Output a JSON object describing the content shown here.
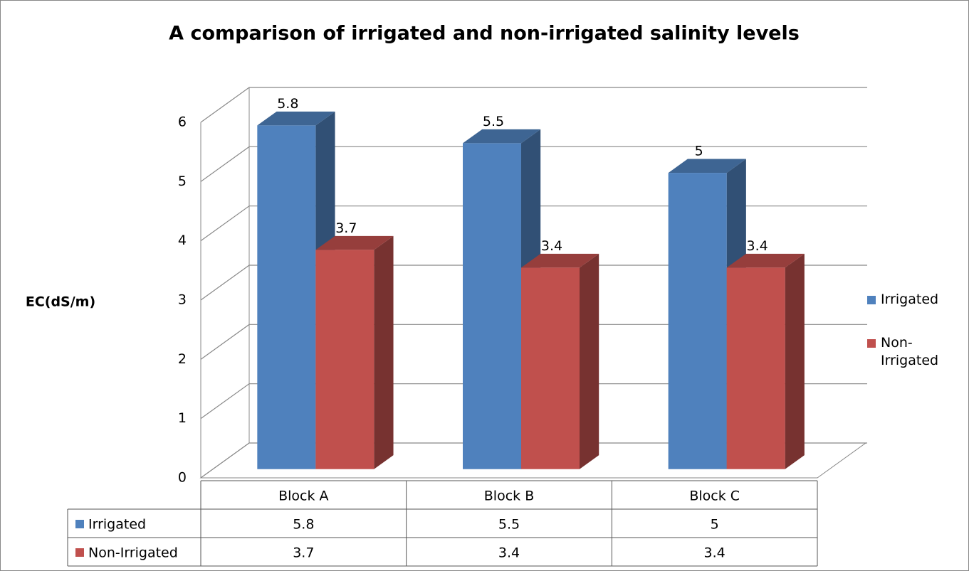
{
  "chart_data": {
    "type": "bar3d",
    "title": "A comparison of irrigated and non-irrigated salinity levels",
    "y_label": "EC(dS/m)",
    "categories": [
      "Block A",
      "Block B",
      "Block C"
    ],
    "series": [
      {
        "name": "Irrigated",
        "color": "#4f81bd",
        "values": [
          5.8,
          5.5,
          5
        ]
      },
      {
        "name": "Non-Irrigated",
        "color": "#c0504d",
        "values": [
          3.7,
          3.4,
          3.4
        ]
      }
    ],
    "ylim": [
      0,
      6
    ],
    "yticks": [
      0,
      1,
      2,
      3,
      4,
      5,
      6
    ],
    "grid": true,
    "legend": "right",
    "data_table": true
  }
}
